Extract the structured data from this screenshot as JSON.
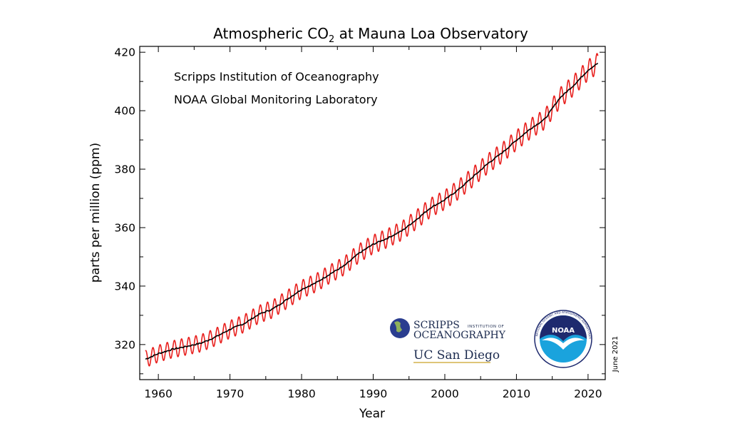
{
  "chart_data": {
    "type": "line",
    "title_main": "Atmospheric CO",
    "title_sub": "2",
    "title_rest": " at Mauna Loa Observatory",
    "xlabel": "Year",
    "ylabel": "parts per million (ppm)",
    "xlim": [
      1957.4,
      2022.4
    ],
    "ylim": [
      308,
      422
    ],
    "xticks": [
      1960,
      1970,
      1980,
      1990,
      2000,
      2010,
      2020
    ],
    "yticks": [
      320,
      340,
      360,
      380,
      400,
      420
    ],
    "annotations": [
      "Scripps Institution of Oceanography",
      "NOAA Global Monitoring Laboratory"
    ],
    "date_note": "June 2021",
    "series": [
      {
        "kind": "monthly",
        "color": "#e8201e",
        "seasonal_amplitude_ppm": 3.2,
        "start_year": 1958.2,
        "end_year": 2021.4
      },
      {
        "kind": "trend",
        "color": "#000000",
        "points": [
          [
            1958.2,
            315.0
          ],
          [
            1960,
            316.9
          ],
          [
            1962,
            318.4
          ],
          [
            1964,
            319.4
          ],
          [
            1966,
            320.5
          ],
          [
            1968,
            322.6
          ],
          [
            1970,
            325.2
          ],
          [
            1972,
            327.2
          ],
          [
            1974,
            330.3
          ],
          [
            1976,
            332.2
          ],
          [
            1978,
            335.5
          ],
          [
            1980,
            338.9
          ],
          [
            1982,
            341.1
          ],
          [
            1984,
            344.2
          ],
          [
            1986,
            347.0
          ],
          [
            1988,
            351.2
          ],
          [
            1990,
            354.3
          ],
          [
            1992,
            356.4
          ],
          [
            1994,
            358.9
          ],
          [
            1996,
            362.7
          ],
          [
            1998,
            366.8
          ],
          [
            2000,
            369.5
          ],
          [
            2002,
            373.2
          ],
          [
            2004,
            377.5
          ],
          [
            2006,
            381.9
          ],
          [
            2008,
            385.6
          ],
          [
            2010,
            389.9
          ],
          [
            2012,
            393.9
          ],
          [
            2014,
            397.2
          ],
          [
            2016,
            404.2
          ],
          [
            2018,
            408.7
          ],
          [
            2020,
            413.9
          ],
          [
            2021.4,
            416.3
          ]
        ]
      }
    ]
  },
  "logos": {
    "scripps_line1": "SCRIPPS",
    "scripps_line1_small": "INSTITUTION OF",
    "scripps_line2": "OCEANOGRAPHY",
    "ucsd": "UC San Diego",
    "noaa": "NOAA",
    "noaa_ring_text": "NATIONAL OCEANIC AND ATMOSPHERIC ADMINISTRATION · U.S. DEPARTMENT OF COMMERCE",
    "colors": {
      "scripps_globe": "#2a3d8f",
      "noaa_navy": "#1e2a6e",
      "noaa_cyan": "#1aa3dd"
    }
  }
}
